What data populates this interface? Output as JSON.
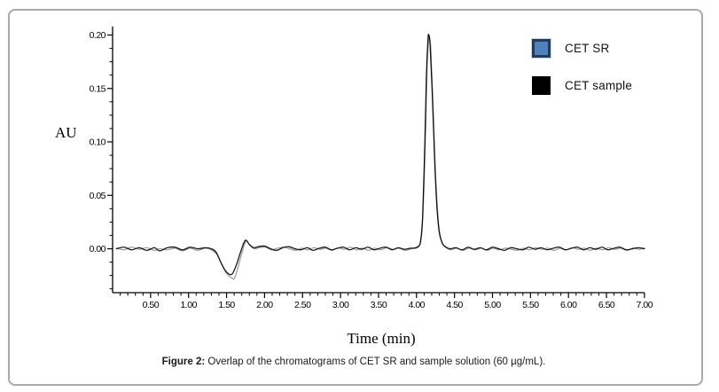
{
  "figure": {
    "caption_prefix": "Figure 2:",
    "caption_text": " Overlap of the chromatograms of CET SR and sample solution (60 µg/mL)."
  },
  "chart_data": {
    "type": "line",
    "title": "",
    "xlabel": "Time (min)",
    "ylabel": "AU",
    "xlim": [
      0,
      7.0
    ],
    "ylim": [
      -0.041,
      0.208
    ],
    "grid": false,
    "legend_position": "upper right",
    "x_major_ticks": [
      0.5,
      1.0,
      1.5,
      2.0,
      2.5,
      3.0,
      3.5,
      4.0,
      4.5,
      5.0,
      5.5,
      6.0,
      6.5,
      7.0
    ],
    "x_minor_step": 0.1,
    "y_major_ticks": [
      0.0,
      0.05,
      0.1,
      0.15,
      0.2
    ],
    "y_minor_step": 0.0125,
    "tick_label_decimals": 2,
    "axis_color": "#000000",
    "peak_annotation": {
      "retention_time_min": 4.16,
      "height_AU": 0.2
    },
    "series": [
      {
        "name": "CET SR",
        "line_color": "#94989d",
        "swatch_fill": "#4f81bd",
        "swatch_border": "#1f3b5e",
        "points": [
          [
            0.05,
            0.0005
          ],
          [
            0.15,
            -0.001
          ],
          [
            0.25,
            0.0015
          ],
          [
            0.35,
            -0.0005
          ],
          [
            0.45,
            0.001
          ],
          [
            0.55,
            -0.0015
          ],
          [
            0.62,
            0.0
          ],
          [
            0.72,
            -0.001
          ],
          [
            0.82,
            0.0005
          ],
          [
            0.92,
            -0.002
          ],
          [
            1.02,
            0.0005
          ],
          [
            1.12,
            -0.0015
          ],
          [
            1.22,
            0.0005
          ],
          [
            1.3,
            -0.001
          ],
          [
            1.38,
            -0.006
          ],
          [
            1.44,
            -0.015
          ],
          [
            1.5,
            -0.023
          ],
          [
            1.56,
            -0.027
          ],
          [
            1.6,
            -0.028
          ],
          [
            1.64,
            -0.02
          ],
          [
            1.69,
            -0.007
          ],
          [
            1.74,
            0.005
          ],
          [
            1.77,
            0.007
          ],
          [
            1.81,
            0.003
          ],
          [
            1.87,
            0.0
          ],
          [
            1.93,
            0.001
          ],
          [
            2.01,
            0.0015
          ],
          [
            2.09,
            -0.001
          ],
          [
            2.17,
            0.0005
          ],
          [
            2.25,
            0.0015
          ],
          [
            2.33,
            0.0
          ],
          [
            2.41,
            -0.0015
          ],
          [
            2.49,
            0.0005
          ],
          [
            2.57,
            -0.001
          ],
          [
            2.65,
            0.001
          ],
          [
            2.73,
            -0.0005
          ],
          [
            2.81,
            0.0005
          ],
          [
            2.89,
            -0.0015
          ],
          [
            2.97,
            0.001
          ],
          [
            3.05,
            -0.0005
          ],
          [
            3.13,
            0.0015
          ],
          [
            3.21,
            -0.001
          ],
          [
            3.29,
            0.0005
          ],
          [
            3.37,
            -0.0015
          ],
          [
            3.45,
            0.0005
          ],
          [
            3.53,
            -0.001
          ],
          [
            3.61,
            0.001
          ],
          [
            3.69,
            -0.0005
          ],
          [
            3.77,
            0.0005
          ],
          [
            3.85,
            -0.0015
          ],
          [
            3.93,
            0.0
          ],
          [
            4.01,
            0.002
          ],
          [
            4.06,
            0.008
          ],
          [
            4.09,
            0.04
          ],
          [
            4.12,
            0.11
          ],
          [
            4.14,
            0.17
          ],
          [
            4.16,
            0.197
          ],
          [
            4.17,
            0.199
          ],
          [
            4.19,
            0.185
          ],
          [
            4.22,
            0.13
          ],
          [
            4.25,
            0.072
          ],
          [
            4.28,
            0.033
          ],
          [
            4.31,
            0.013
          ],
          [
            4.35,
            0.004
          ],
          [
            4.39,
            0.001
          ],
          [
            4.45,
            -0.001
          ],
          [
            4.53,
            0.0005
          ],
          [
            4.61,
            -0.0015
          ],
          [
            4.69,
            0.0005
          ],
          [
            4.77,
            -0.001
          ],
          [
            4.85,
            0.0005
          ],
          [
            4.93,
            -0.0015
          ],
          [
            5.01,
            0.0005
          ],
          [
            5.09,
            -0.001
          ],
          [
            5.17,
            0.0005
          ],
          [
            5.25,
            -0.0005
          ],
          [
            5.33,
            -0.0015
          ],
          [
            5.41,
            0.0005
          ],
          [
            5.49,
            -0.001
          ],
          [
            5.57,
            0.001
          ],
          [
            5.65,
            -0.0005
          ],
          [
            5.73,
            0.0005
          ],
          [
            5.81,
            -0.0015
          ],
          [
            5.89,
            0.0005
          ],
          [
            5.97,
            -0.001
          ],
          [
            6.05,
            0.001
          ],
          [
            6.13,
            -0.0005
          ],
          [
            6.21,
            0.0005
          ],
          [
            6.29,
            -0.0015
          ],
          [
            6.37,
            0.0005
          ],
          [
            6.45,
            -0.001
          ],
          [
            6.53,
            0.001
          ],
          [
            6.61,
            -0.0005
          ],
          [
            6.69,
            0.0005
          ],
          [
            6.77,
            -0.0015
          ],
          [
            6.85,
            0.0005
          ],
          [
            6.93,
            -0.0005
          ],
          [
            7.0,
            0.0005
          ]
        ]
      },
      {
        "name": "CET sample",
        "line_color": "#0a0a0a",
        "swatch_fill": "#000000",
        "swatch_border": "#000000",
        "points": [
          [
            0.05,
            0.0
          ],
          [
            0.15,
            0.0015
          ],
          [
            0.25,
            -0.001
          ],
          [
            0.35,
            0.001
          ],
          [
            0.45,
            -0.0015
          ],
          [
            0.55,
            0.001
          ],
          [
            0.62,
            -0.002
          ],
          [
            0.72,
            0.001
          ],
          [
            0.82,
            0.0015
          ],
          [
            0.92,
            -0.001
          ],
          [
            1.02,
            0.0015
          ],
          [
            1.12,
            0.0
          ],
          [
            1.22,
            0.001
          ],
          [
            1.3,
            0.0
          ],
          [
            1.36,
            -0.003
          ],
          [
            1.42,
            -0.012
          ],
          [
            1.48,
            -0.02
          ],
          [
            1.54,
            -0.024
          ],
          [
            1.58,
            -0.023
          ],
          [
            1.63,
            -0.015
          ],
          [
            1.68,
            -0.004
          ],
          [
            1.73,
            0.006
          ],
          [
            1.76,
            0.008
          ],
          [
            1.8,
            0.004
          ],
          [
            1.86,
            0.001
          ],
          [
            1.92,
            0.002
          ],
          [
            2.0,
            0.0025
          ],
          [
            2.08,
            0.0
          ],
          [
            2.16,
            -0.0015
          ],
          [
            2.24,
            0.001
          ],
          [
            2.32,
            0.002
          ],
          [
            2.4,
            0.0
          ],
          [
            2.48,
            -0.001
          ],
          [
            2.56,
            0.001
          ],
          [
            2.64,
            -0.0015
          ],
          [
            2.72,
            0.0005
          ],
          [
            2.8,
            0.0015
          ],
          [
            2.88,
            -0.001
          ],
          [
            2.96,
            0.0005
          ],
          [
            3.04,
            0.0015
          ],
          [
            3.12,
            -0.001
          ],
          [
            3.2,
            0.001
          ],
          [
            3.28,
            -0.0005
          ],
          [
            3.36,
            0.0015
          ],
          [
            3.44,
            -0.001
          ],
          [
            3.52,
            0.0005
          ],
          [
            3.6,
            0.0015
          ],
          [
            3.68,
            -0.001
          ],
          [
            3.76,
            0.001
          ],
          [
            3.84,
            -0.0005
          ],
          [
            3.92,
            0.0005
          ],
          [
            4.0,
            0.001
          ],
          [
            4.05,
            0.006
          ],
          [
            4.08,
            0.03
          ],
          [
            4.11,
            0.1
          ],
          [
            4.13,
            0.16
          ],
          [
            4.15,
            0.195
          ],
          [
            4.16,
            0.2
          ],
          [
            4.18,
            0.19
          ],
          [
            4.21,
            0.14
          ],
          [
            4.24,
            0.08
          ],
          [
            4.27,
            0.038
          ],
          [
            4.3,
            0.015
          ],
          [
            4.34,
            0.005
          ],
          [
            4.38,
            0.002
          ],
          [
            4.44,
            0.0
          ],
          [
            4.52,
            0.001
          ],
          [
            4.6,
            -0.001
          ],
          [
            4.68,
            0.0015
          ],
          [
            4.76,
            -0.0005
          ],
          [
            4.84,
            0.001
          ],
          [
            4.92,
            -0.001
          ],
          [
            5.0,
            0.0015
          ],
          [
            5.08,
            0.0
          ],
          [
            5.16,
            -0.0015
          ],
          [
            5.24,
            0.001
          ],
          [
            5.32,
            0.0
          ],
          [
            5.4,
            -0.001
          ],
          [
            5.48,
            0.0015
          ],
          [
            5.56,
            -0.0005
          ],
          [
            5.64,
            0.001
          ],
          [
            5.72,
            -0.001
          ],
          [
            5.8,
            0.0005
          ],
          [
            5.88,
            0.0015
          ],
          [
            5.96,
            -0.001
          ],
          [
            6.04,
            0.0005
          ],
          [
            6.12,
            0.0015
          ],
          [
            6.2,
            -0.001
          ],
          [
            6.28,
            0.001
          ],
          [
            6.36,
            -0.0005
          ],
          [
            6.44,
            0.0015
          ],
          [
            6.52,
            -0.001
          ],
          [
            6.6,
            0.0005
          ],
          [
            6.68,
            0.0015
          ],
          [
            6.76,
            -0.001
          ],
          [
            6.84,
            0.0
          ],
          [
            6.92,
            0.001
          ],
          [
            7.0,
            0.0
          ]
        ]
      }
    ]
  }
}
